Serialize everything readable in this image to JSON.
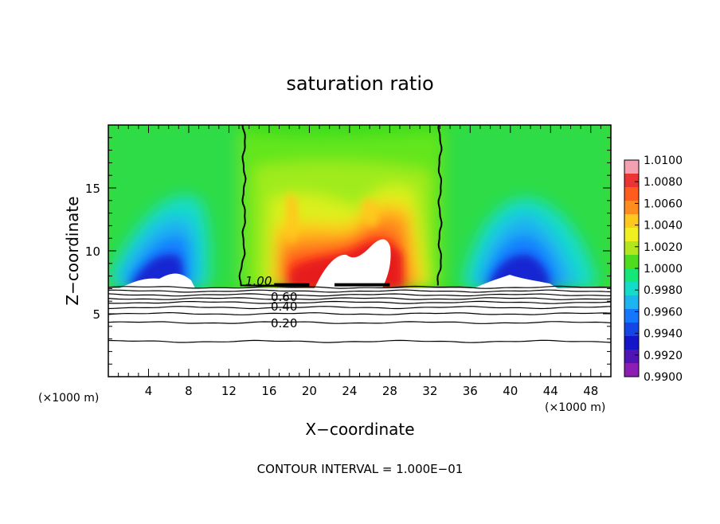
{
  "chart_data": {
    "type": "heatmap",
    "title": "saturation ratio",
    "xlabel": "X−coordinate",
    "ylabel": "Z−coordinate",
    "x_unit_label": "(×1000 m)",
    "z_unit_label": "(×1000 m)",
    "footer": "CONTOUR INTERVAL = 1.000E−01",
    "xlim": [
      0,
      50
    ],
    "ylim": [
      0,
      20
    ],
    "x_ticks": [
      4,
      8,
      12,
      16,
      20,
      24,
      28,
      32,
      36,
      40,
      44,
      48
    ],
    "y_ticks": [
      5,
      10,
      15
    ],
    "colorbar": {
      "levels": [
        "1.0100",
        "1.0080",
        "1.0060",
        "1.0040",
        "1.0020",
        "1.0000",
        "0.9980",
        "0.9960",
        "0.9940",
        "0.9920",
        "0.9900"
      ],
      "min": 0.99,
      "max": 1.01,
      "colors": [
        "#f4a0b0",
        "#ec3434",
        "#ff5c1e",
        "#ff8c1e",
        "#ffc81e",
        "#f0f020",
        "#b4e61e",
        "#50dc1e",
        "#14e678",
        "#14dcc8",
        "#1eb4f0",
        "#1478ff",
        "#1446e6",
        "#1414c8",
        "#5014b4",
        "#8c1eb4"
      ]
    },
    "contour_labels": [
      "1.00",
      "0.60",
      "0.40",
      "0.20"
    ],
    "cloud_base_km": 7.2,
    "contour_line_heights_km": [
      7.1,
      6.8,
      6.5,
      6.2,
      5.9,
      5.5,
      5.0,
      4.3,
      2.8
    ],
    "contour_1_00_x_km": [
      13.5,
      33.0
    ]
  }
}
